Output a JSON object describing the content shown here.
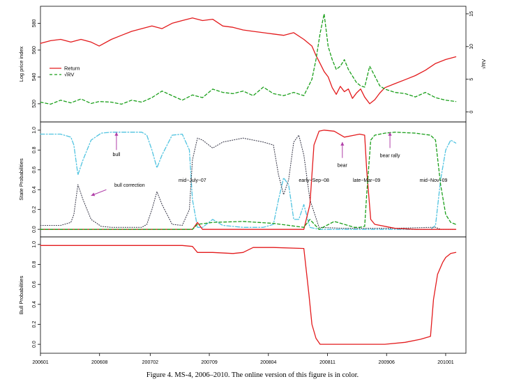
{
  "caption": "Figure 4.   MS-4, 2006–2010. The online version of this figure is in color.",
  "colors": {
    "red": "#e31a1c",
    "green": "#1a9f1a",
    "cyan": "#4fc3e0",
    "dotted": "#3c3c4c",
    "arrow": "#b03fa8"
  },
  "chart_data": [
    {
      "type": "line",
      "panel": "top",
      "xlabel": "",
      "ylabel": "Log price index",
      "ylabel_right": "√RV",
      "x_range": [
        2006.0,
        2010.2
      ],
      "ylim": [
        508,
        588
      ],
      "yticks": [
        520,
        540,
        560,
        580
      ],
      "ylim_right": [
        -1.2,
        15.2
      ],
      "yticks_right": [
        0,
        5,
        10,
        15
      ],
      "legend_position": "left",
      "series": [
        {
          "name": "Return",
          "axis": "left",
          "style": "solid",
          "color": "red",
          "x": [
            2006.0,
            2006.1,
            2006.2,
            2006.3,
            2006.4,
            2006.5,
            2006.58,
            2006.7,
            2006.8,
            2006.9,
            2007.0,
            2007.1,
            2007.2,
            2007.3,
            2007.4,
            2007.5,
            2007.6,
            2007.7,
            2007.8,
            2007.9,
            2008.0,
            2008.1,
            2008.2,
            2008.3,
            2008.4,
            2008.5,
            2008.6,
            2008.68,
            2008.72,
            2008.76,
            2008.8,
            2008.84,
            2008.88,
            2008.92,
            2008.96,
            2009.0,
            2009.04,
            2009.08,
            2009.12,
            2009.16,
            2009.2,
            2009.25,
            2009.3,
            2009.35,
            2009.4,
            2009.5,
            2009.6,
            2009.7,
            2009.8,
            2009.9,
            2010.0,
            2010.1
          ],
          "values": [
            565,
            567,
            568,
            566,
            568,
            566,
            563,
            568,
            571,
            574,
            576,
            578,
            576,
            580,
            582,
            584,
            582,
            583,
            578,
            577,
            575,
            574,
            573,
            572,
            571,
            573,
            568,
            563,
            556,
            550,
            544,
            540,
            532,
            527,
            533,
            529,
            531,
            524,
            528,
            531,
            525,
            520,
            523,
            528,
            532,
            535,
            538,
            541,
            545,
            550,
            553,
            555
          ]
        },
        {
          "name": "√RV",
          "axis": "right",
          "style": "dashed",
          "color": "green",
          "x": [
            2006.0,
            2006.1,
            2006.2,
            2006.3,
            2006.4,
            2006.5,
            2006.58,
            2006.7,
            2006.8,
            2006.9,
            2007.0,
            2007.1,
            2007.2,
            2007.3,
            2007.4,
            2007.5,
            2007.6,
            2007.7,
            2007.8,
            2007.9,
            2008.0,
            2008.1,
            2008.2,
            2008.3,
            2008.4,
            2008.5,
            2008.6,
            2008.68,
            2008.72,
            2008.76,
            2008.8,
            2008.84,
            2008.88,
            2008.92,
            2008.96,
            2009.0,
            2009.04,
            2009.08,
            2009.12,
            2009.16,
            2009.2,
            2009.25,
            2009.3,
            2009.35,
            2009.4,
            2009.5,
            2009.6,
            2009.7,
            2009.8,
            2009.9,
            2010.0,
            2010.1
          ],
          "values": [
            1.5,
            1.2,
            1.8,
            1.4,
            2.0,
            1.3,
            1.6,
            1.5,
            1.2,
            1.8,
            1.5,
            2.2,
            3.2,
            2.5,
            1.8,
            2.6,
            2.2,
            3.5,
            3.0,
            2.8,
            3.2,
            2.5,
            3.8,
            2.8,
            2.5,
            3.0,
            2.5,
            5.0,
            8.0,
            12.0,
            15.0,
            10.0,
            8.0,
            6.5,
            7.0,
            8.0,
            6.5,
            5.5,
            4.5,
            4.0,
            3.8,
            7.0,
            5.5,
            4.0,
            3.5,
            3.0,
            2.8,
            2.3,
            3.0,
            2.2,
            1.8,
            1.6
          ]
        }
      ]
    },
    {
      "type": "line",
      "panel": "middle",
      "xlabel": "",
      "ylabel": "State Probabilities",
      "x_range": [
        2006.0,
        2010.2
      ],
      "ylim": [
        -0.02,
        1.02
      ],
      "yticks": [
        0.0,
        0.2,
        0.4,
        0.6,
        0.8,
        1.0
      ],
      "annotations": [
        {
          "label": "bull",
          "x": 2006.75,
          "y": 0.77
        },
        {
          "label": "bull correction",
          "x": 2006.8,
          "y": 0.45
        },
        {
          "label": "mid−July−07",
          "x": 2007.5,
          "y": 0.48
        },
        {
          "label": "early−Sep−08",
          "x": 2008.7,
          "y": 0.48
        },
        {
          "label": "bear",
          "x": 2008.98,
          "y": 0.63
        },
        {
          "label": "late−Mar−09",
          "x": 2009.22,
          "y": 0.48
        },
        {
          "label": "bear rally",
          "x": 2009.45,
          "y": 0.73
        },
        {
          "label": "mid−Nov−09",
          "x": 2009.88,
          "y": 0.48
        }
      ],
      "series": [
        {
          "name": "bull",
          "style": "dashdot",
          "color": "cyan",
          "x": [
            2006.0,
            2006.2,
            2006.3,
            2006.33,
            2006.37,
            2006.42,
            2006.5,
            2006.6,
            2006.7,
            2006.9,
            2007.0,
            2007.05,
            2007.1,
            2007.15,
            2007.2,
            2007.3,
            2007.4,
            2007.47,
            2007.5,
            2007.55,
            2007.6,
            2007.7,
            2007.8,
            2008.0,
            2008.2,
            2008.3,
            2008.35,
            2008.4,
            2008.45,
            2008.5,
            2008.55,
            2008.6,
            2008.66,
            2008.75,
            2009.0,
            2009.5,
            2009.85,
            2009.9,
            2009.95,
            2010.0,
            2010.05,
            2010.1
          ],
          "values": [
            0.96,
            0.96,
            0.93,
            0.85,
            0.55,
            0.7,
            0.9,
            0.97,
            0.98,
            0.98,
            0.98,
            0.95,
            0.8,
            0.62,
            0.75,
            0.95,
            0.96,
            0.8,
            0.3,
            0.02,
            0.02,
            0.1,
            0.04,
            0.02,
            0.02,
            0.05,
            0.3,
            0.52,
            0.45,
            0.1,
            0.1,
            0.25,
            0.02,
            0.0,
            0.0,
            0.0,
            0.0,
            0.04,
            0.5,
            0.8,
            0.9,
            0.87
          ]
        },
        {
          "name": "bull correction",
          "style": "dotted",
          "color": "dotted",
          "x": [
            2006.0,
            2006.2,
            2006.3,
            2006.33,
            2006.37,
            2006.42,
            2006.5,
            2006.6,
            2006.7,
            2006.9,
            2007.0,
            2007.05,
            2007.1,
            2007.15,
            2007.2,
            2007.3,
            2007.4,
            2007.47,
            2007.5,
            2007.55,
            2007.6,
            2007.7,
            2007.8,
            2008.0,
            2008.2,
            2008.3,
            2008.35,
            2008.4,
            2008.45,
            2008.5,
            2008.55,
            2008.6,
            2008.66,
            2008.75,
            2009.0,
            2009.5,
            2009.85,
            2009.9,
            2009.95,
            2010.0,
            2010.05,
            2010.1
          ],
          "values": [
            0.04,
            0.04,
            0.07,
            0.15,
            0.45,
            0.3,
            0.1,
            0.03,
            0.02,
            0.02,
            0.02,
            0.05,
            0.2,
            0.38,
            0.25,
            0.05,
            0.04,
            0.2,
            0.7,
            0.92,
            0.9,
            0.82,
            0.88,
            0.92,
            0.88,
            0.85,
            0.55,
            0.35,
            0.5,
            0.88,
            0.95,
            0.75,
            0.3,
            0.02,
            0.01,
            0.01,
            0.02,
            0.02,
            0.0,
            0.0,
            0.0,
            0.0
          ]
        },
        {
          "name": "bear",
          "style": "solid",
          "color": "red",
          "x": [
            2006.0,
            2007.5,
            2007.55,
            2007.6,
            2008.6,
            2008.66,
            2008.7,
            2008.75,
            2008.8,
            2008.9,
            2009.0,
            2009.1,
            2009.15,
            2009.2,
            2009.22,
            2009.26,
            2009.3,
            2009.5,
            2009.7,
            2010.0,
            2010.1
          ],
          "values": [
            0.0,
            0.0,
            0.07,
            0.0,
            0.0,
            0.25,
            0.85,
            0.99,
            1.0,
            0.99,
            0.93,
            0.95,
            0.96,
            0.95,
            0.6,
            0.1,
            0.05,
            0.01,
            0.0,
            0.0,
            0.0
          ]
        },
        {
          "name": "bear rally",
          "style": "dashed",
          "color": "green",
          "x": [
            2006.0,
            2007.5,
            2007.55,
            2007.7,
            2008.0,
            2008.3,
            2008.6,
            2008.66,
            2008.75,
            2008.9,
            2009.0,
            2009.1,
            2009.15,
            2009.2,
            2009.22,
            2009.26,
            2009.3,
            2009.4,
            2009.5,
            2009.7,
            2009.85,
            2009.9,
            2009.95,
            2010.0,
            2010.05,
            2010.1
          ],
          "values": [
            0.0,
            0.0,
            0.05,
            0.07,
            0.08,
            0.06,
            0.02,
            0.1,
            0.0,
            0.08,
            0.05,
            0.02,
            0.02,
            0.03,
            0.35,
            0.9,
            0.95,
            0.97,
            0.98,
            0.97,
            0.95,
            0.9,
            0.45,
            0.15,
            0.07,
            0.05
          ]
        }
      ]
    },
    {
      "type": "line",
      "panel": "bottom",
      "xlabel": "",
      "ylabel": "Bull Probabilities",
      "x_range": [
        2006.0,
        2010.2
      ],
      "ylim": [
        -0.02,
        1.02
      ],
      "yticks": [
        0.0,
        0.2,
        0.4,
        0.6,
        0.8,
        1.0
      ],
      "xticks": [
        "200601",
        "200608",
        "200702",
        "200709",
        "200804",
        "200811",
        "200906",
        "201001"
      ],
      "series": [
        {
          "name": "Bull",
          "style": "solid",
          "color": "red",
          "x": [
            2006.0,
            2007.4,
            2007.5,
            2007.55,
            2007.7,
            2007.9,
            2008.0,
            2008.1,
            2008.3,
            2008.6,
            2008.65,
            2008.68,
            2008.72,
            2008.76,
            2008.8,
            2009.4,
            2009.6,
            2009.75,
            2009.85,
            2009.88,
            2009.92,
            2009.97,
            2010.0,
            2010.05,
            2010.1
          ],
          "values": [
            0.99,
            0.99,
            0.98,
            0.92,
            0.92,
            0.91,
            0.92,
            0.97,
            0.97,
            0.96,
            0.5,
            0.2,
            0.06,
            0.0,
            0.0,
            0.0,
            0.02,
            0.05,
            0.08,
            0.45,
            0.7,
            0.82,
            0.87,
            0.91,
            0.92
          ]
        }
      ]
    }
  ]
}
